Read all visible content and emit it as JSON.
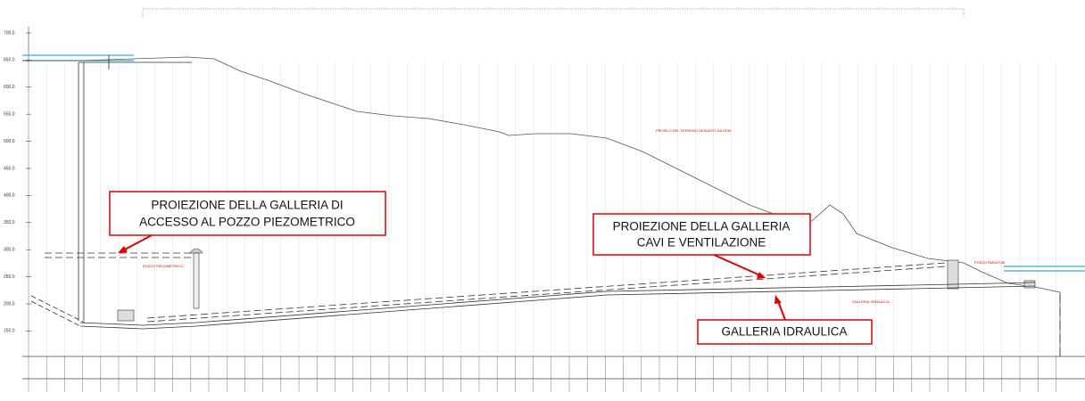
{
  "y_axis_labels": [
    "700.0",
    "650.0",
    "600.0",
    "550.0",
    "500.0",
    "450.0",
    "400.0",
    "350.0",
    "300.0",
    "250.0",
    "200.0",
    "150.0"
  ],
  "callouts": [
    {
      "lines": [
        "PROIEZIONE DELLA GALLERIA DI",
        "ACCESSO AL POZZO PIEZOMETRICO"
      ]
    },
    {
      "lines": [
        "PROIEZIONE DELLA GALLERIA",
        "CAVI E VENTILAZIONE"
      ]
    },
    {
      "lines": [
        "GALLERIA IDRAULICA"
      ]
    }
  ],
  "annotations": [
    "POZZO PIEZOMETRICO",
    "POZZO PARATOIE",
    "PROFILO DEL TERRENO DESUNTO DA DEM",
    "GALLERIA IDRAULICA"
  ]
}
